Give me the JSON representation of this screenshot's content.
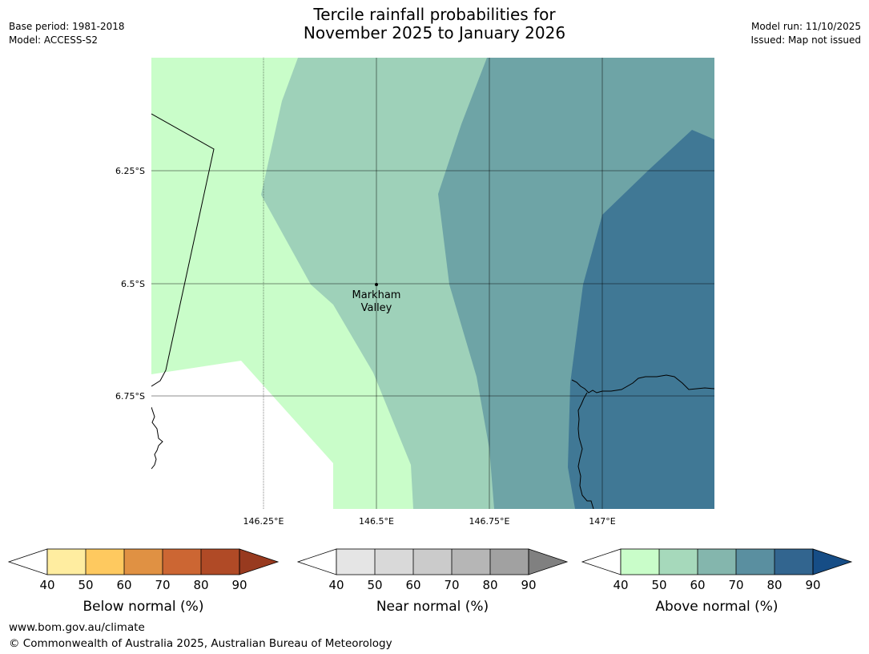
{
  "header": {
    "title_line1": "Tercile rainfall probabilities for",
    "title_line2": "November 2025 to January 2026",
    "base_period": "Base period: 1981-2018",
    "model": "Model: ACCESS-S2",
    "model_run": "Model run: 11/10/2025",
    "issued": "Issued: Map not issued"
  },
  "map": {
    "lat_labels": [
      "6.25°S",
      "6.5°S",
      "6.75°S"
    ],
    "lon_labels": [
      "146.25°E",
      "146.5°E",
      "146.75°E",
      "147°E"
    ],
    "place": {
      "name_line1": "Markham",
      "name_line2": "Valley"
    },
    "zone_colors": {
      "above_40_50": "#c9fdc9",
      "above_50_60": "#9ed1b9",
      "above_60_70": "#6ea4a6",
      "above_70_80": "#407895",
      "outside": "#ffffff",
      "grid": "#000000"
    }
  },
  "legends": [
    {
      "label": "Below normal (%)",
      "ticks": [
        "40",
        "50",
        "60",
        "70",
        "80",
        "90"
      ],
      "colors": [
        "#ffeda0",
        "#fec95f",
        "#e09143",
        "#cc6633",
        "#b04a26"
      ],
      "arrow_color": "#983a1f"
    },
    {
      "label": "Near normal (%)",
      "ticks": [
        "40",
        "50",
        "60",
        "70",
        "80",
        "90"
      ],
      "colors": [
        "#e5e5e5",
        "#d9d9d9",
        "#cbcbcb",
        "#b6b6b6",
        "#a1a1a1"
      ],
      "arrow_color": "#808080"
    },
    {
      "label": "Above normal (%)",
      "ticks": [
        "40",
        "50",
        "60",
        "70",
        "80",
        "90"
      ],
      "colors": [
        "#c9fdc9",
        "#a6d9bb",
        "#84b6ad",
        "#5a8fa0",
        "#32658f"
      ],
      "arrow_color": "#164d86"
    }
  ],
  "footer": {
    "website": "www.bom.gov.au/climate",
    "copyright": "© Commonwealth of Australia 2025, Australian Bureau of Meteorology"
  }
}
